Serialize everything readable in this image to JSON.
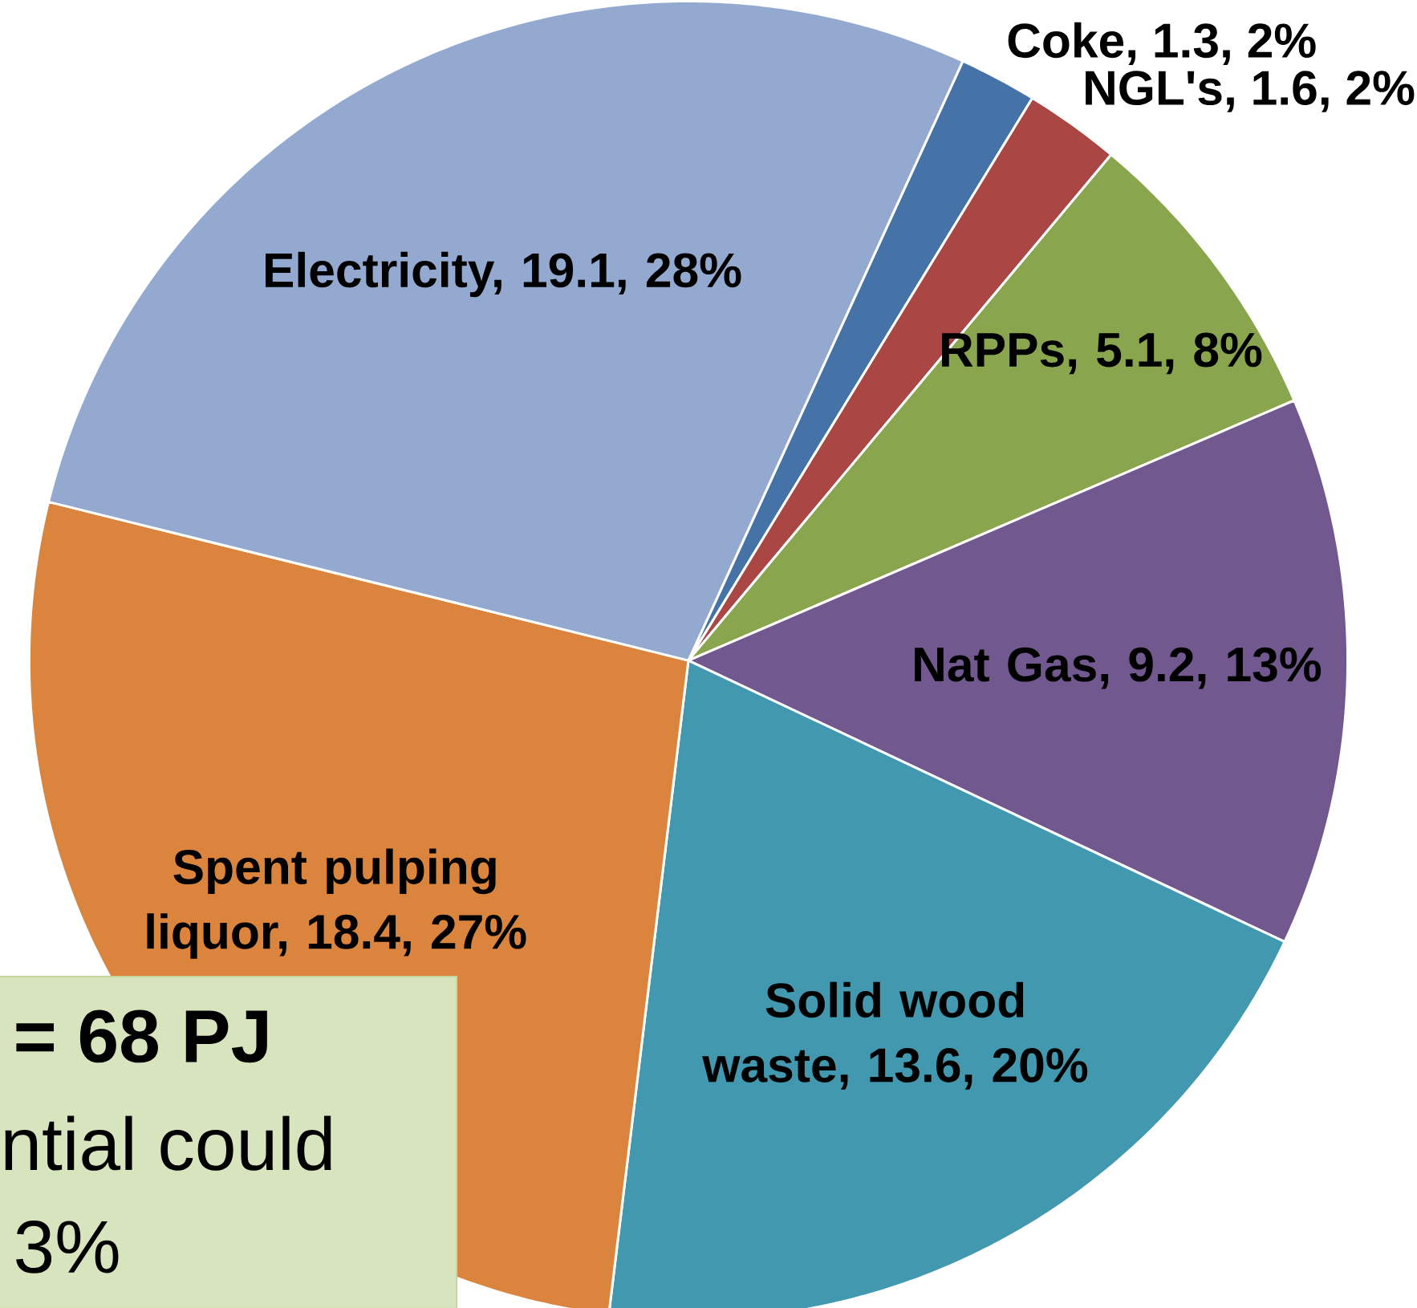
{
  "chart_data": {
    "type": "pie",
    "categories": [
      "Coke, 1.3, 2%",
      "NGL's, 1.6, 2%",
      "RPPs, 5.1, 8%",
      "Nat Gas, 9.2, 13%",
      "Solid wood waste, 13.6, 20%",
      "Spent pulping liquor, 18.4, 27%",
      "Electricity, 19.1, 28%"
    ],
    "values": [
      1.3,
      1.6,
      5.1,
      9.2,
      13.6,
      18.4,
      19.1
    ],
    "colors": [
      "#4572a7",
      "#aa4643",
      "#89a54e",
      "#71588f",
      "#4198af",
      "#db843d",
      "#93a9cf"
    ],
    "annotations": [
      "= 68 PJ",
      "ntial could",
      "3%"
    ]
  }
}
